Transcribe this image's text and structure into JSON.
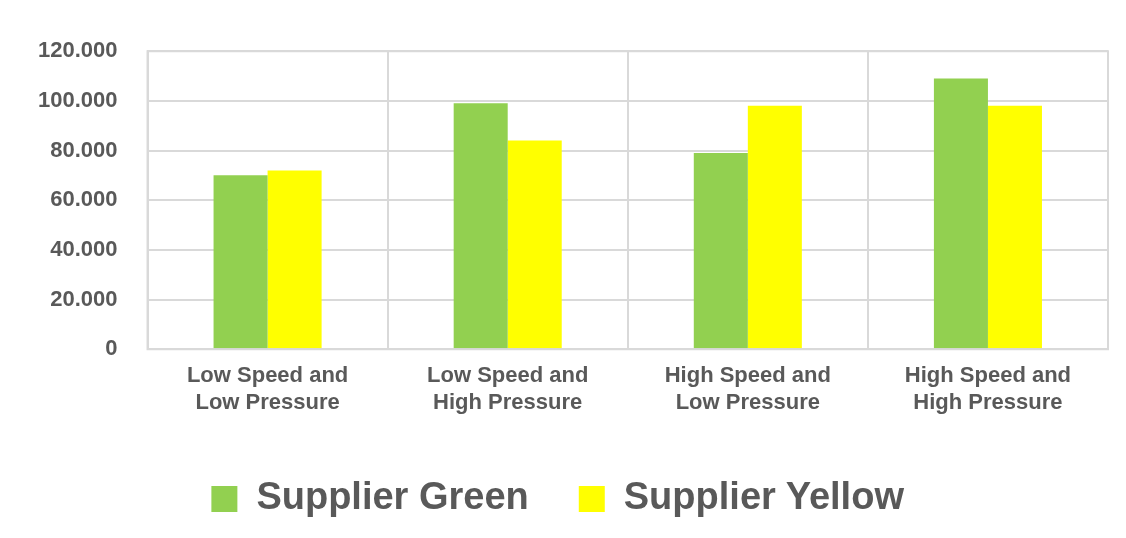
{
  "chart_data": {
    "type": "bar",
    "categories": [
      "Low Speed and Low Pressure",
      "Low Speed and High Pressure",
      "High Speed and Low Pressure",
      "High Speed and High Pressure"
    ],
    "series": [
      {
        "name": "Supplier Green",
        "color": "#92d050",
        "values": [
          70000,
          99000,
          79000,
          109000
        ]
      },
      {
        "name": "Supplier Yellow",
        "color": "#ffff00",
        "values": [
          72000,
          84000,
          98000,
          98000
        ]
      }
    ],
    "ylim": [
      0,
      120000
    ],
    "yticks": [
      0,
      {
        "value": 20000,
        "label": "20.000"
      },
      {
        "value": 40000,
        "label": "40.000"
      },
      {
        "value": 60000,
        "label": "60.000"
      },
      {
        "value": 80000,
        "label": "80.000"
      },
      {
        "value": 100000,
        "label": "100.000"
      },
      {
        "value": 120000,
        "label": "120.000"
      }
    ],
    "grid": true,
    "legend": "bottom"
  }
}
